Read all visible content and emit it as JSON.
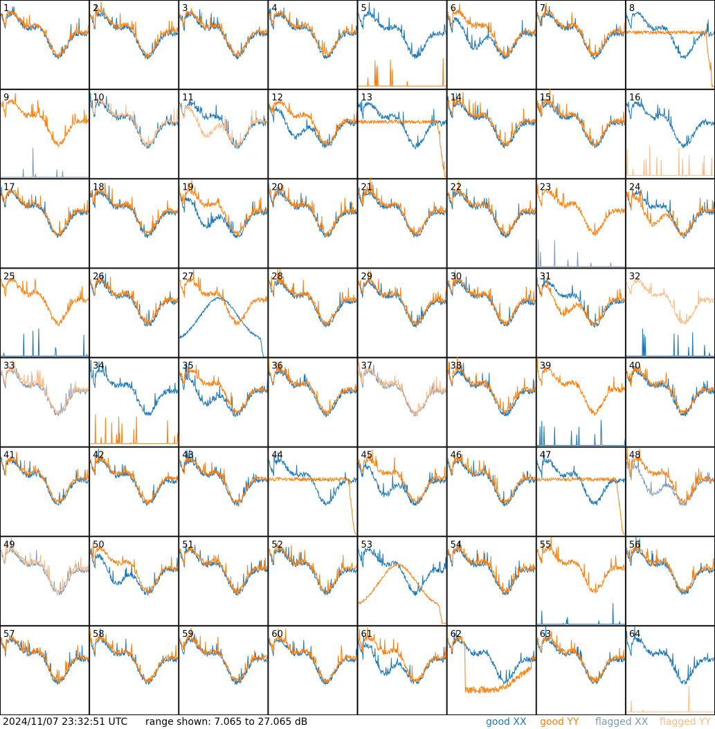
{
  "chart_data": {
    "type": "line",
    "grid": "8x8 small multiples",
    "panel_labels": [
      "1",
      "2",
      "3",
      "4",
      "5",
      "6",
      "7",
      "8",
      "9",
      "10",
      "11",
      "12",
      "13",
      "14",
      "15",
      "16",
      "17",
      "18",
      "19",
      "20",
      "21",
      "22",
      "23",
      "24",
      "25",
      "26",
      "27",
      "28",
      "29",
      "30",
      "31",
      "32",
      "33",
      "34",
      "35",
      "36",
      "37",
      "38",
      "39",
      "40",
      "41",
      "42",
      "43",
      "44",
      "45",
      "46",
      "47",
      "48",
      "49",
      "50",
      "51",
      "52",
      "53",
      "54",
      "55",
      "56",
      "57",
      "58",
      "59",
      "60",
      "61",
      "62",
      "63",
      "64"
    ],
    "ylim_db": [
      7.065,
      27.065
    ],
    "series_legend": [
      {
        "name": "good XX",
        "color": "#1f77b4"
      },
      {
        "name": "good YY",
        "color": "#ff7f0e"
      },
      {
        "name": "flagged XX",
        "color": "#7f9ab5"
      },
      {
        "name": "flagged YY",
        "color": "#ffbb88"
      }
    ],
    "flags": {
      "5": {
        "xx": "good",
        "yy": "low"
      },
      "6": {
        "xx": "dip",
        "yy": "good"
      },
      "8": {
        "xx": "good",
        "yy": "drop"
      },
      "9": {
        "xx": "flagged-low",
        "yy": "good"
      },
      "10": {
        "xx": "good",
        "yy": "flagged"
      },
      "11": {
        "xx": "good",
        "yy": "flagged-dip"
      },
      "12": {
        "xx": "dip",
        "yy": "good"
      },
      "13": {
        "xx": "good",
        "yy": "drop"
      },
      "16": {
        "xx": "good",
        "yy": "flagged-low"
      },
      "19": {
        "xx": "dip",
        "yy": "good"
      },
      "23": {
        "xx": "flagged-low",
        "yy": "good"
      },
      "24": {
        "xx": "good",
        "yy": "dip"
      },
      "25": {
        "xx": "low",
        "yy": "good"
      },
      "27": {
        "xx": "hump",
        "yy": "good"
      },
      "31": {
        "xx": "good",
        "yy": "dip"
      },
      "32": {
        "xx": "low",
        "yy": "flagged"
      },
      "33": {
        "xx": "flagged",
        "yy": "flagged"
      },
      "34": {
        "xx": "good",
        "yy": "low"
      },
      "35": {
        "xx": "dip",
        "yy": "good"
      },
      "37": {
        "xx": "flagged",
        "yy": "flagged"
      },
      "39": {
        "xx": "low",
        "yy": "good"
      },
      "44": {
        "xx": "good",
        "yy": "drop"
      },
      "45": {
        "xx": "dip",
        "yy": "good"
      },
      "47": {
        "xx": "good",
        "yy": "drop"
      },
      "48": {
        "xx": "flagged-dip",
        "yy": "good"
      },
      "49": {
        "xx": "flagged",
        "yy": "flagged"
      },
      "50": {
        "xx": "dip",
        "yy": "good"
      },
      "53": {
        "xx": "good",
        "yy": "hump"
      },
      "55": {
        "xx": "low",
        "yy": "good"
      },
      "61": {
        "xx": "dip",
        "yy": "good"
      },
      "62": {
        "xx": "good",
        "yy": "deep-dip"
      },
      "64": {
        "xx": "good",
        "yy": "flagged-low"
      }
    }
  },
  "footer": {
    "timestamp": "2024/11/07 23:32:51 UTC",
    "range_text": "range shown: 7.065 to 27.065 dB",
    "legend": [
      "good XX",
      "good YY",
      "flagged XX",
      "flagged YY"
    ]
  }
}
